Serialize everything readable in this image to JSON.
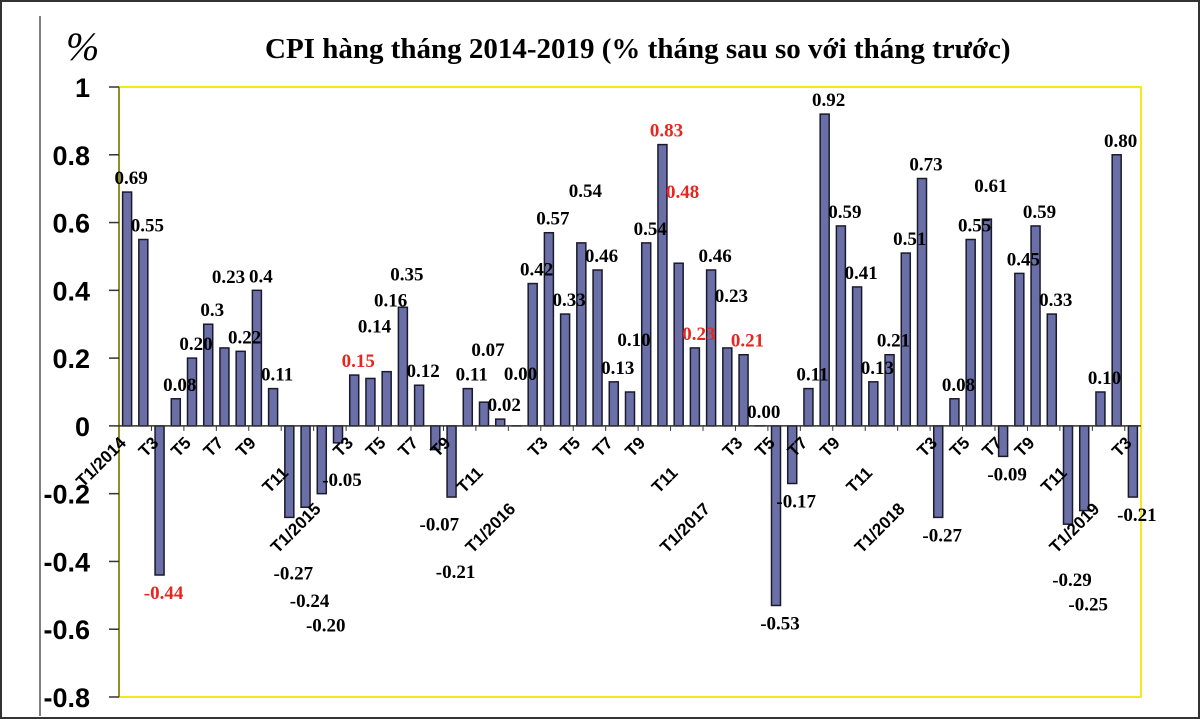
{
  "chart_data": {
    "type": "bar",
    "title": "CPI hàng tháng 2014-2019 (% tháng sau so với tháng trước)",
    "ylabel": "%",
    "ylim": [
      -0.8,
      1
    ],
    "yticks": [
      "1",
      "0.8",
      "0.6",
      "0.4",
      "0.2",
      "0",
      "-0.2",
      "-0.4",
      "-0.6",
      "-0.8"
    ],
    "ytick_values": [
      1,
      0.8,
      0.6,
      0.4,
      0.2,
      0,
      -0.2,
      -0.4,
      -0.6,
      -0.8
    ],
    "grid": false,
    "bar_color": "#6a6fa8",
    "highlight_color": "#e8251f",
    "plot_border_color": "#f2ea1a",
    "x_tick_labels": [
      "T1/2014",
      "T3",
      "T5",
      "T7",
      "T9",
      "T11",
      "T1/2015",
      "T3",
      "T5",
      "T7",
      "T9",
      "T11",
      "T1/2016",
      "T3",
      "T5",
      "T7",
      "T9",
      "T11",
      "T1/2017",
      "T3",
      "T5",
      "T7",
      "T9",
      "T11",
      "T1/2018",
      "T3",
      "T5",
      "T7",
      "T9",
      "T11",
      "T1/2019",
      "T3"
    ],
    "values": [
      0.69,
      0.55,
      -0.44,
      0.08,
      0.2,
      0.3,
      0.23,
      0.22,
      0.4,
      0.11,
      -0.27,
      -0.24,
      -0.2,
      -0.05,
      0.15,
      0.14,
      0.16,
      0.35,
      0.12,
      -0.07,
      -0.21,
      0.11,
      0.07,
      0.02,
      0.0,
      0.42,
      0.57,
      0.33,
      0.54,
      0.46,
      0.13,
      0.1,
      0.54,
      0.83,
      0.48,
      0.23,
      0.46,
      0.23,
      0.21,
      0.0,
      -0.53,
      -0.17,
      0.11,
      0.92,
      0.59,
      0.41,
      0.13,
      0.21,
      0.51,
      0.73,
      -0.27,
      0.08,
      0.55,
      0.61,
      -0.09,
      0.45,
      0.59,
      0.33,
      -0.29,
      -0.25,
      0.1,
      0.8,
      -0.21
    ],
    "data_labels": [
      "0.69",
      "0.55",
      "-0.44",
      "0.08",
      "0.20",
      "0.3",
      "0.23",
      "0.22",
      "0.4",
      "0.11",
      "-0.27",
      "-0.24",
      "-0.20",
      "-0.05",
      "0.15",
      "0.14",
      "0.16",
      "0.35",
      "0.12",
      "-0.07",
      "-0.21",
      "0.11",
      "0.07",
      "0.02",
      "0.00",
      "0.42",
      "0.57",
      "0.33",
      "0.54",
      "0.46",
      "0.13",
      "0.10",
      "0.54",
      "0.83",
      "0.48",
      "0.23",
      "0.46",
      "0.23",
      "0.21",
      "0.00",
      "-0.53",
      "-0.17",
      "0.11",
      "0.92",
      "0.59",
      "0.41",
      "0.13",
      "0.21",
      "0.51",
      "0.73",
      "-0.27",
      "0.08",
      "0.55",
      "0.61",
      "-0.09",
      "0.45",
      "0.59",
      "0.33",
      "-0.29",
      "-0.25",
      "0.10",
      "0.80",
      "-0.21"
    ],
    "highlighted_indices": [
      2,
      14,
      33,
      34,
      35,
      38
    ]
  }
}
